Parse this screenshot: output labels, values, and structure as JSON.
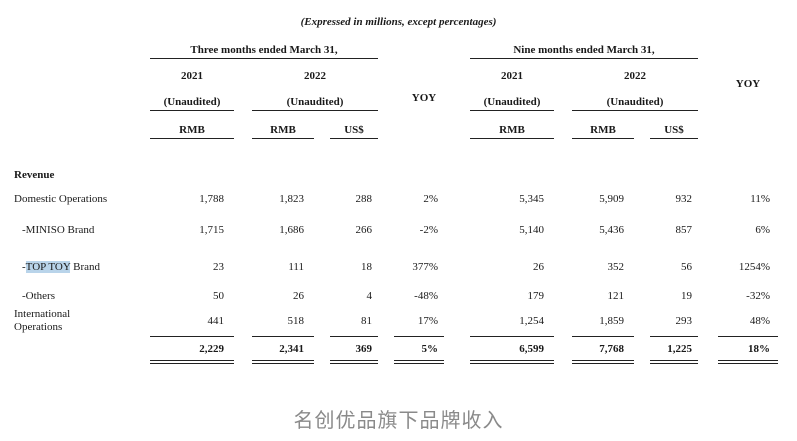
{
  "subtitle": "(Expressed in millions, except percentages)",
  "groups": {
    "three_months": "Three months ended March 31,",
    "nine_months": "Nine months ended March 31,"
  },
  "headers": {
    "year_2021": "2021",
    "year_2022": "2022",
    "unaudited": "(Unaudited)",
    "yoy": "YOY",
    "rmb": "RMB",
    "usd": "US$"
  },
  "section_title": "Revenue",
  "rows": [
    {
      "label": "Domestic Operations",
      "highlight": "",
      "label_rest": "",
      "values": [
        "1,788",
        "1,823",
        "288",
        "2%",
        "5,345",
        "5,909",
        "932",
        "11%"
      ]
    },
    {
      "label": "-MINISO Brand",
      "highlight": "",
      "label_rest": "",
      "values": [
        "1,715",
        "1,686",
        "266",
        "-2%",
        "5,140",
        "5,436",
        "857",
        "6%"
      ]
    },
    {
      "label": "-",
      "highlight": "TOP TOY",
      "label_rest": " Brand",
      "values": [
        "23",
        "111",
        "18",
        "377%",
        "26",
        "352",
        "56",
        "1254%"
      ]
    },
    {
      "label": "-Others",
      "highlight": "",
      "label_rest": "",
      "values": [
        "50",
        "26",
        "4",
        "-48%",
        "179",
        "121",
        "19",
        "-32%"
      ]
    },
    {
      "label": "International",
      "label_line2": "Operations",
      "highlight": "",
      "label_rest": "",
      "values": [
        "441",
        "518",
        "81",
        "17%",
        "1,254",
        "1,859",
        "293",
        "48%"
      ]
    }
  ],
  "total": [
    "2,229",
    "2,341",
    "369",
    "5%",
    "6,599",
    "7,768",
    "1,225",
    "18%"
  ],
  "footer_caption": "名创优品旗下品牌收入"
}
